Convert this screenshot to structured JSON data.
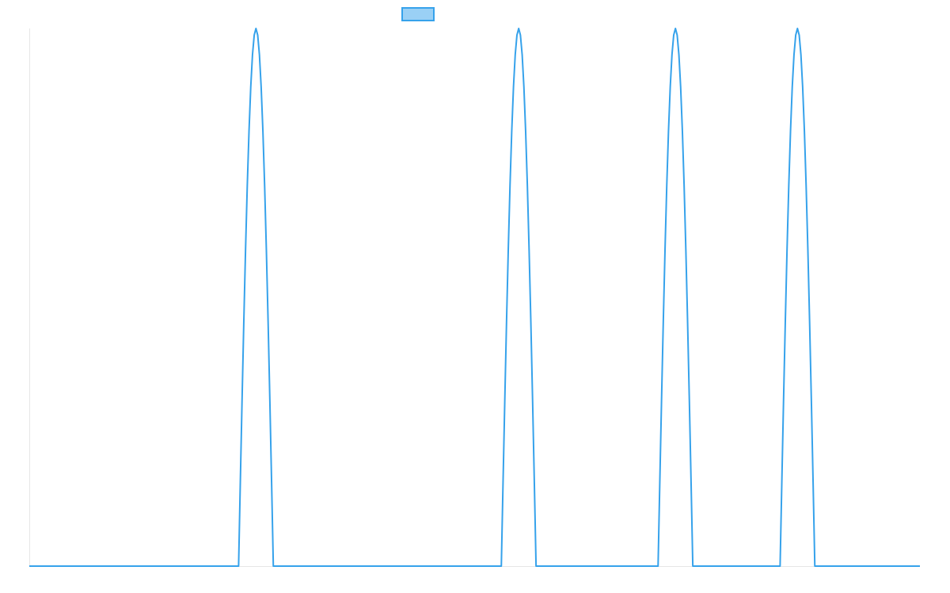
{
  "colors": {
    "series_stroke": "#36a2eb",
    "series_fill": "#9ad0f5",
    "axis": "#e6e6e6"
  },
  "chart_data": {
    "type": "line",
    "x_range": [
      0,
      1000
    ],
    "y_range": [
      0,
      1
    ],
    "grid": false,
    "legend_position": "top-center",
    "series": [
      {
        "label": "",
        "baseline": 0,
        "peaks": [
          {
            "start": 235,
            "center": 254.5,
            "end": 274,
            "height": 1
          },
          {
            "start": 530,
            "center": 549.5,
            "end": 569,
            "height": 1
          },
          {
            "start": 706,
            "center": 725.5,
            "end": 745,
            "height": 1
          },
          {
            "start": 843,
            "center": 862.5,
            "end": 882,
            "height": 1
          }
        ]
      }
    ]
  }
}
